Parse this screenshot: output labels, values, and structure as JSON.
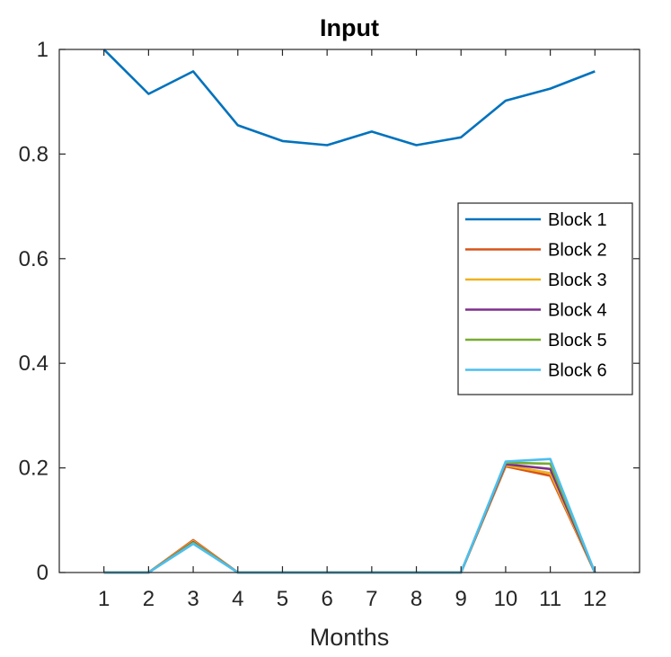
{
  "chart_data": {
    "type": "line",
    "title": "Input",
    "xlabel": "Months",
    "ylabel": "",
    "xlim": [
      0,
      13
    ],
    "ylim": [
      0,
      1
    ],
    "x": [
      1,
      2,
      3,
      4,
      5,
      6,
      7,
      8,
      9,
      10,
      11,
      12
    ],
    "xticks": [
      1,
      2,
      3,
      4,
      5,
      6,
      7,
      8,
      9,
      10,
      11,
      12
    ],
    "yticks": [
      0,
      0.2,
      0.4,
      0.6,
      0.8,
      1
    ],
    "ytick_labels": [
      "0",
      "0.2",
      "0.4",
      "0.6",
      "0.8",
      "1"
    ],
    "grid": false,
    "legend_position": "right",
    "series": [
      {
        "name": "Block 1",
        "color": "#0072BD",
        "values": [
          1.0,
          0.915,
          0.958,
          0.855,
          0.825,
          0.817,
          0.843,
          0.817,
          0.832,
          0.902,
          0.925,
          0.958
        ]
      },
      {
        "name": "Block 2",
        "color": "#D95319",
        "values": [
          0,
          0,
          0.062,
          0,
          0,
          0,
          0,
          0,
          0,
          0.203,
          0.185,
          0
        ]
      },
      {
        "name": "Block 3",
        "color": "#EDB120",
        "values": [
          0,
          0,
          0.06,
          0,
          0,
          0,
          0,
          0,
          0,
          0.205,
          0.19,
          0
        ]
      },
      {
        "name": "Block 4",
        "color": "#7E2F8E",
        "values": [
          0,
          0,
          0.058,
          0,
          0,
          0,
          0,
          0,
          0,
          0.207,
          0.198,
          0
        ]
      },
      {
        "name": "Block 5",
        "color": "#77AC30",
        "values": [
          0,
          0,
          0.057,
          0,
          0,
          0,
          0,
          0,
          0,
          0.21,
          0.208,
          0
        ]
      },
      {
        "name": "Block 6",
        "color": "#4DBEEE",
        "values": [
          0,
          0,
          0.055,
          0,
          0,
          0,
          0,
          0,
          0,
          0.212,
          0.217,
          0
        ]
      }
    ]
  }
}
